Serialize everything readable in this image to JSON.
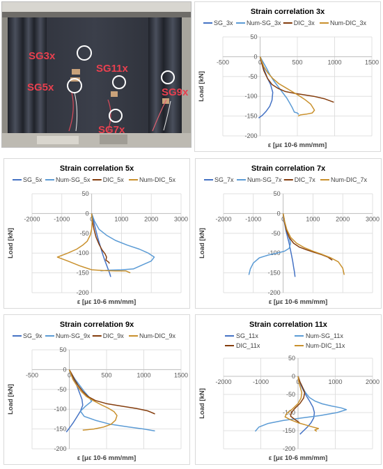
{
  "photo": {
    "labels": [
      "SG3x",
      "SG5x",
      "SG11x",
      "SG9x",
      "SG7x"
    ]
  },
  "chart_data": [
    {
      "type": "line",
      "title": "Strain correlation 3x",
      "xlabel": "ε [με 10-6 mm/mm]",
      "ylabel": "Load [kN]",
      "xlim": [
        -500,
        1500
      ],
      "ylim": [
        -200,
        50
      ],
      "xticks": [
        -500,
        0,
        500,
        1000,
        1500
      ],
      "yticks": [
        50,
        0,
        -50,
        -100,
        -150,
        -200
      ],
      "legend_position": "top",
      "series": [
        {
          "name": "SG_3x",
          "color": "#4472c4",
          "x": [
            0,
            20,
            40,
            70,
            100,
            140,
            170,
            160,
            130,
            80,
            30,
            -20
          ],
          "y": [
            0,
            -10,
            -25,
            -40,
            -55,
            -70,
            -90,
            -110,
            -125,
            -138,
            -148,
            -155
          ]
        },
        {
          "name": "Num-SG_3x",
          "color": "#5b9bd5",
          "x": [
            0,
            30,
            60,
            90,
            130,
            180,
            240,
            300,
            360,
            400,
            430,
            460,
            500,
            520
          ],
          "y": [
            0,
            -10,
            -20,
            -30,
            -45,
            -60,
            -75,
            -90,
            -105,
            -118,
            -128,
            -140,
            -142,
            -146
          ]
        },
        {
          "name": "DIC_3x",
          "color": "#843c0c",
          "x": [
            0,
            20,
            50,
            100,
            160,
            240,
            340,
            450,
            580,
            720,
            860,
            990
          ],
          "y": [
            0,
            -15,
            -35,
            -55,
            -70,
            -80,
            -88,
            -92,
            -96,
            -100,
            -106,
            -115
          ]
        },
        {
          "name": "Num-DIC_3x",
          "color": "#c9902c",
          "x": [
            0,
            20,
            50,
            100,
            170,
            250,
            340,
            430,
            520,
            600,
            680,
            730,
            700,
            620,
            540,
            510
          ],
          "y": [
            0,
            -10,
            -25,
            -40,
            -55,
            -68,
            -78,
            -88,
            -98,
            -108,
            -120,
            -135,
            -142,
            -145,
            -147,
            -150
          ]
        }
      ]
    },
    {
      "type": "line",
      "title": "Strain correlation 5x",
      "xlabel": "ε [με 10-6 mm/mm]",
      "ylabel": "Load [kN]",
      "xlim": [
        -2000,
        3000
      ],
      "ylim": [
        -200,
        50
      ],
      "xticks": [
        -2000,
        -1000,
        0,
        1000,
        2000,
        3000
      ],
      "yticks": [
        50,
        0,
        -50,
        -100,
        -150,
        -200
      ],
      "legend_position": "top",
      "series": [
        {
          "name": "SG_5x",
          "color": "#4472c4",
          "x": [
            0,
            50,
            100,
            150,
            200,
            260,
            320,
            380,
            440,
            500,
            560,
            600,
            640
          ],
          "y": [
            0,
            -15,
            -30,
            -45,
            -60,
            -75,
            -90,
            -105,
            -118,
            -130,
            -142,
            -150,
            -160
          ]
        },
        {
          "name": "Num-SG_5x",
          "color": "#5b9bd5",
          "x": [
            0,
            100,
            250,
            500,
            800,
            1200,
            1600,
            1900,
            2100,
            2000,
            1700,
            1400,
            1000,
            600,
            300
          ],
          "y": [
            0,
            -20,
            -40,
            -55,
            -68,
            -80,
            -90,
            -100,
            -110,
            -120,
            -130,
            -140,
            -142,
            -143,
            -145
          ]
        },
        {
          "name": "DIC_5x",
          "color": "#843c0c",
          "x": [
            0,
            30,
            80,
            150,
            250,
            350,
            450,
            500,
            480,
            560,
            600
          ],
          "y": [
            0,
            -20,
            -40,
            -60,
            -78,
            -92,
            -102,
            -110,
            -118,
            -122,
            -126
          ]
        },
        {
          "name": "Num-DIC_5x",
          "color": "#c9902c",
          "x": [
            0,
            20,
            0,
            -50,
            -150,
            -300,
            -500,
            -800,
            -1150,
            -800,
            -400,
            0,
            400,
            800,
            1150,
            1300
          ],
          "y": [
            0,
            -20,
            -40,
            -55,
            -70,
            -80,
            -90,
            -100,
            -110,
            -120,
            -132,
            -142,
            -144,
            -145,
            -145,
            -150
          ]
        }
      ]
    },
    {
      "type": "line",
      "title": "Strain correlation 7x",
      "xlabel": "ε [με 10-6 mm/mm]",
      "ylabel": "Load [kN]",
      "xlim": [
        -2000,
        3000
      ],
      "ylim": [
        -200,
        50
      ],
      "xticks": [
        -2000,
        -1000,
        0,
        1000,
        2000,
        3000
      ],
      "yticks": [
        50,
        0,
        -50,
        -100,
        -150,
        -200
      ],
      "legend_position": "top",
      "series": [
        {
          "name": "SG_7x",
          "color": "#4472c4",
          "x": [
            0,
            20,
            60,
            100,
            150,
            200,
            240,
            280,
            320,
            350,
            380,
            400
          ],
          "y": [
            0,
            -15,
            -30,
            -45,
            -60,
            -75,
            -90,
            -105,
            -120,
            -135,
            -148,
            -160
          ]
        },
        {
          "name": "Num-SG_7x",
          "color": "#5b9bd5",
          "x": [
            0,
            50,
            120,
            200,
            250,
            200,
            50,
            -200,
            -500,
            -800,
            -1000,
            -1100,
            -1150
          ],
          "y": [
            0,
            -20,
            -40,
            -60,
            -75,
            -88,
            -95,
            -100,
            -105,
            -112,
            -125,
            -140,
            -155
          ]
        },
        {
          "name": "DIC_7x",
          "color": "#843c0c",
          "x": [
            0,
            40,
            100,
            200,
            350,
            550,
            800,
            1050,
            1300,
            1500,
            1650
          ],
          "y": [
            0,
            -20,
            -40,
            -60,
            -75,
            -85,
            -92,
            -98,
            -104,
            -110,
            -118
          ]
        },
        {
          "name": "Num-DIC_7x",
          "color": "#c9902c",
          "x": [
            0,
            50,
            120,
            250,
            450,
            700,
            1000,
            1300,
            1600,
            1850,
            2000,
            2050
          ],
          "y": [
            0,
            -20,
            -40,
            -60,
            -75,
            -86,
            -95,
            -103,
            -112,
            -122,
            -138,
            -155
          ]
        }
      ]
    },
    {
      "type": "line",
      "title": "Strain correlation 9x",
      "xlabel": "ε [με 10-6 mm/mm]",
      "ylabel": "Load [kN]",
      "xlim": [
        -500,
        1500
      ],
      "ylim": [
        -200,
        50
      ],
      "xticks": [
        -500,
        0,
        500,
        1000,
        1500
      ],
      "yticks": [
        50,
        0,
        -50,
        -100,
        -150,
        -200
      ],
      "legend_position": "top",
      "series": [
        {
          "name": "SG_9x",
          "color": "#4472c4",
          "x": [
            0,
            20,
            50,
            80,
            110,
            140,
            170,
            180,
            150,
            100,
            50,
            0,
            -40
          ],
          "y": [
            0,
            -10,
            -20,
            -30,
            -45,
            -60,
            -75,
            -90,
            -105,
            -120,
            -135,
            -148,
            -158
          ]
        },
        {
          "name": "Num-SG_9x",
          "color": "#5b9bd5",
          "x": [
            0,
            30,
            80,
            140,
            200,
            260,
            300,
            220,
            150,
            200,
            350,
            550,
            800,
            1000,
            1150
          ],
          "y": [
            0,
            -10,
            -25,
            -40,
            -55,
            -68,
            -80,
            -92,
            -105,
            -118,
            -128,
            -138,
            -145,
            -150,
            -155
          ]
        },
        {
          "name": "DIC_9x",
          "color": "#843c0c",
          "x": [
            0,
            30,
            70,
            120,
            180,
            250,
            350,
            500,
            700,
            900,
            1050,
            1100,
            1150
          ],
          "y": [
            0,
            -10,
            -25,
            -40,
            -55,
            -68,
            -78,
            -86,
            -92,
            -98,
            -104,
            -108,
            -112
          ]
        },
        {
          "name": "Num-DIC_9x",
          "color": "#c9902c",
          "x": [
            0,
            20,
            50,
            100,
            160,
            230,
            320,
            420,
            520,
            600,
            640,
            620,
            560,
            460,
            330,
            180
          ],
          "y": [
            0,
            -10,
            -25,
            -40,
            -55,
            -68,
            -78,
            -88,
            -97,
            -106,
            -116,
            -128,
            -138,
            -145,
            -150,
            -153
          ]
        }
      ]
    },
    {
      "type": "line",
      "title": "Strain correlation 11x",
      "xlabel": "ε [με 10-6 mm/mm]",
      "ylabel": "Load [kN]",
      "xlim": [
        -2000,
        2000
      ],
      "ylim": [
        -200,
        50
      ],
      "xticks": [
        -2000,
        -1000,
        0,
        1000,
        2000
      ],
      "yticks": [
        50,
        0,
        -50,
        -100,
        -150,
        -200
      ],
      "legend_position": "top",
      "series": [
        {
          "name": "SG_11x",
          "color": "#4472c4",
          "x": [
            0,
            30,
            80,
            150,
            230,
            320,
            400,
            440,
            420,
            350,
            250,
            150,
            50
          ],
          "y": [
            0,
            -10,
            -25,
            -40,
            -55,
            -70,
            -85,
            -100,
            -115,
            -128,
            -140,
            -150,
            -160
          ]
        },
        {
          "name": "Num-SG_11x",
          "color": "#5b9bd5",
          "x": [
            0,
            50,
            120,
            200,
            300,
            450,
            650,
            900,
            1150,
            1300,
            1050,
            600,
            100,
            -400,
            -800,
            -1050,
            -1150
          ],
          "y": [
            0,
            -15,
            -30,
            -45,
            -58,
            -68,
            -76,
            -82,
            -87,
            -92,
            -100,
            -108,
            -115,
            -122,
            -130,
            -140,
            -152
          ]
        },
        {
          "name": "DIC_11x",
          "color": "#843c0c",
          "x": [
            0,
            50,
            120,
            180,
            150,
            50,
            -80,
            -180,
            -200,
            -100,
            0,
            50
          ],
          "y": [
            0,
            -15,
            -30,
            -45,
            -60,
            -75,
            -88,
            -100,
            -110,
            -118,
            -125,
            -130
          ]
        },
        {
          "name": "Num-DIC_11x",
          "color": "#c9902c",
          "x": [
            0,
            20,
            60,
            100,
            80,
            0,
            -150,
            -300,
            -350,
            -200,
            0,
            200,
            400,
            550,
            450,
            500
          ],
          "y": [
            0,
            -15,
            -30,
            -45,
            -60,
            -75,
            -90,
            -102,
            -112,
            -120,
            -128,
            -134,
            -140,
            -144,
            -148,
            -152
          ]
        }
      ]
    }
  ]
}
